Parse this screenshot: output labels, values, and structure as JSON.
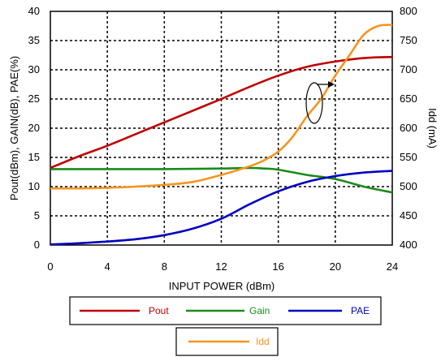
{
  "chart_data": {
    "type": "line",
    "xlabel": "INPUT POWER (dBm)",
    "ylabel_left": "Pout(dBm), GAIN(dB), PAE(%)",
    "ylabel_right": "Idd (mA)",
    "xlim": [
      0,
      24
    ],
    "ylim_left": [
      0,
      40
    ],
    "ylim_right": [
      400,
      800
    ],
    "x_ticks": [
      0,
      4,
      8,
      12,
      16,
      20,
      24
    ],
    "y_left_ticks": [
      0,
      5,
      10,
      15,
      20,
      25,
      30,
      35,
      40
    ],
    "y_right_ticks": [
      400,
      450,
      500,
      550,
      600,
      650,
      700,
      750,
      800
    ],
    "grid": true,
    "legend_position": "bottom",
    "series": [
      {
        "name": "Pout",
        "axis": "left",
        "color": "#c00000",
        "points": [
          [
            0,
            13.2
          ],
          [
            2,
            15.2
          ],
          [
            4,
            17.0
          ],
          [
            6,
            19.0
          ],
          [
            8,
            21.0
          ],
          [
            10,
            23.0
          ],
          [
            12,
            25.0
          ],
          [
            14,
            27.1
          ],
          [
            16,
            29.0
          ],
          [
            18,
            30.5
          ],
          [
            20,
            31.4
          ],
          [
            22,
            32.0
          ],
          [
            24,
            32.2
          ]
        ]
      },
      {
        "name": "Gain",
        "axis": "left",
        "color": "#1a8a1a",
        "points": [
          [
            0,
            13.0
          ],
          [
            4,
            13.0
          ],
          [
            8,
            13.0
          ],
          [
            12,
            13.1
          ],
          [
            14,
            13.2
          ],
          [
            15,
            13.1
          ],
          [
            16,
            12.9
          ],
          [
            18,
            12.0
          ],
          [
            20,
            11.3
          ],
          [
            22,
            10.0
          ],
          [
            24,
            9.0
          ]
        ]
      },
      {
        "name": "PAE",
        "axis": "left",
        "color": "#0000c0",
        "points": [
          [
            0,
            0.1
          ],
          [
            2,
            0.3
          ],
          [
            4,
            0.6
          ],
          [
            6,
            1.0
          ],
          [
            8,
            1.7
          ],
          [
            10,
            2.8
          ],
          [
            12,
            4.5
          ],
          [
            14,
            7.0
          ],
          [
            16,
            9.2
          ],
          [
            18,
            10.8
          ],
          [
            20,
            11.8
          ],
          [
            22,
            12.4
          ],
          [
            24,
            12.7
          ]
        ]
      },
      {
        "name": "Idd",
        "axis": "right",
        "color": "#f7941d",
        "points": [
          [
            0,
            497
          ],
          [
            2,
            497
          ],
          [
            4,
            498
          ],
          [
            6,
            500
          ],
          [
            8,
            503
          ],
          [
            10,
            508
          ],
          [
            12,
            520
          ],
          [
            14,
            535
          ],
          [
            15,
            545
          ],
          [
            16,
            560
          ],
          [
            17,
            585
          ],
          [
            18,
            620
          ],
          [
            19,
            650
          ],
          [
            20,
            690
          ],
          [
            21,
            725
          ],
          [
            22,
            760
          ],
          [
            23,
            775
          ],
          [
            24,
            777
          ]
        ]
      }
    ],
    "annotation": "ellipse with arrow pointing to right axis"
  }
}
